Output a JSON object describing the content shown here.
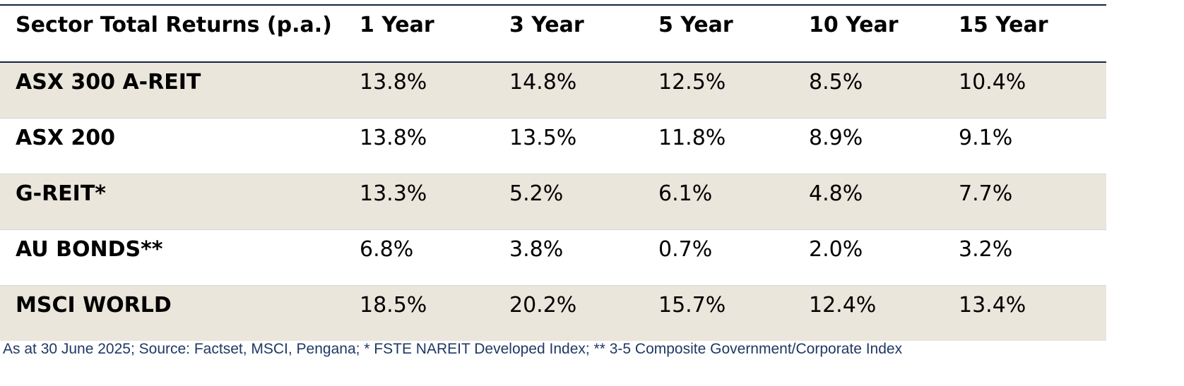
{
  "table": {
    "header": [
      "Sector Total Returns (p.a.)",
      "1 Year",
      "3 Year",
      "5 Year",
      "10 Year",
      "15 Year"
    ],
    "rows": [
      [
        "ASX 300 A-REIT",
        "13.8%",
        "14.8%",
        "12.5%",
        "8.5%",
        "10.4%"
      ],
      [
        "ASX 200",
        "13.8%",
        "13.5%",
        "11.8%",
        "8.9%",
        "9.1%"
      ],
      [
        "G-REIT*",
        "13.3%",
        "5.2%",
        "6.1%",
        "4.8%",
        "7.7%"
      ],
      [
        "AU BONDS**",
        "6.8%",
        "3.8%",
        "0.7%",
        "2.0%",
        "3.2%"
      ],
      [
        "MSCI WORLD",
        "18.5%",
        "20.2%",
        "15.7%",
        "12.4%",
        "13.4%"
      ]
    ]
  },
  "footnote": "As at 30 June 2025; Source: Factset, MSCI, Pengana; * FSTE NAREIT Developed Index; ** 3-5 Composite Government/Corporate Index"
}
